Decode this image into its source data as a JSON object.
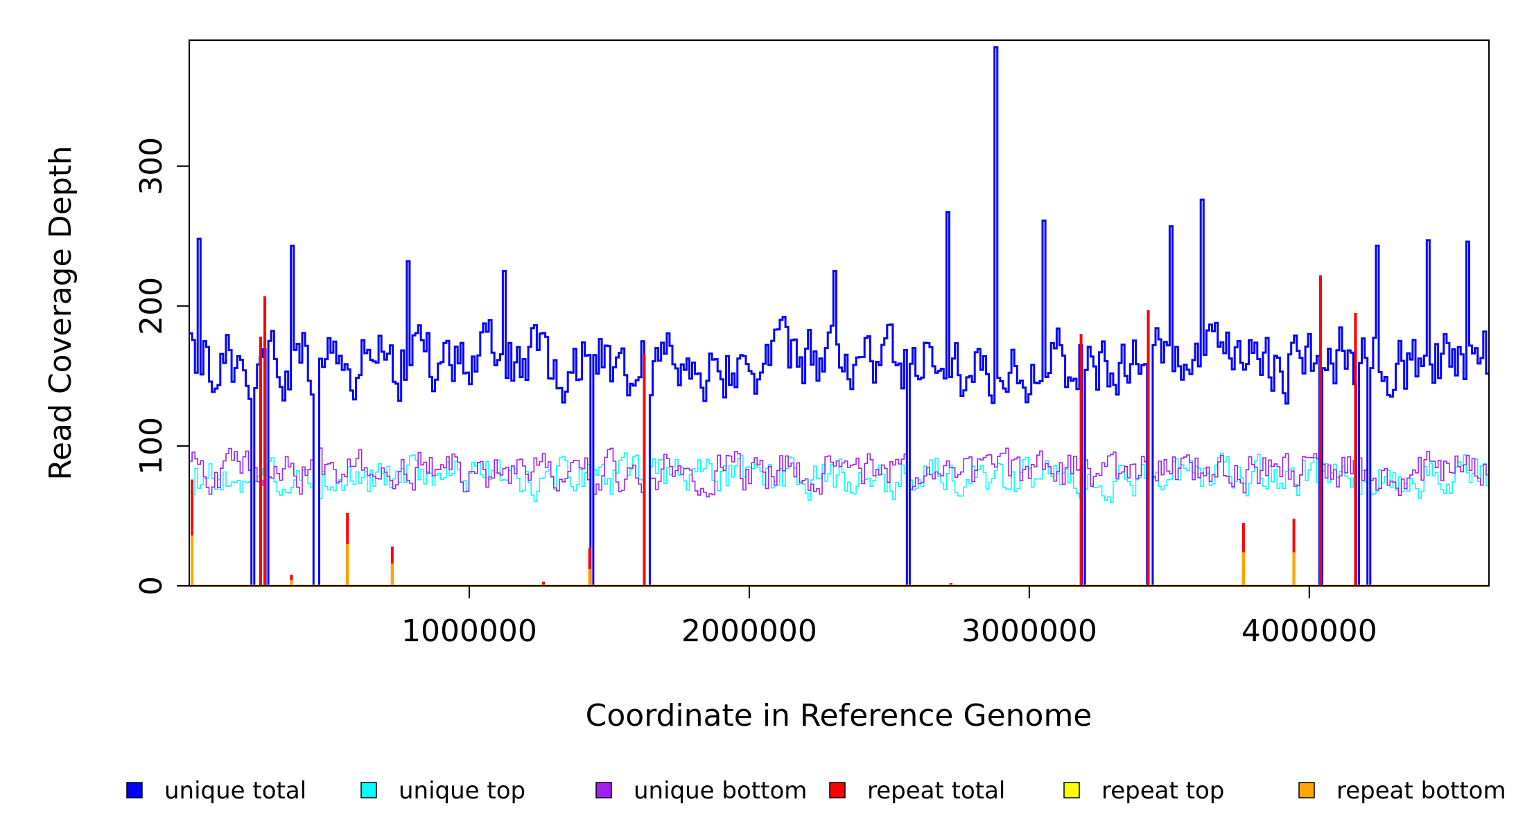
{
  "chart_data": {
    "type": "line",
    "xlabel": "Coordinate in Reference Genome",
    "ylabel": "Read Coverage Depth",
    "xlim": [
      0,
      4641652
    ],
    "ylim": [
      0,
      390
    ],
    "x_ticks": [
      1000000,
      2000000,
      3000000,
      4000000
    ],
    "x_tick_labels": [
      "1000000",
      "2000000",
      "3000000",
      "4000000"
    ],
    "y_ticks": [
      0,
      100,
      200,
      300
    ],
    "y_tick_labels": [
      "0",
      "100",
      "200",
      "300"
    ],
    "grid": false,
    "legend_position": "bottom",
    "colors": {
      "unique_total": "#0000ff",
      "unique_top": "#00ffff",
      "unique_bottom": "#a020f0",
      "repeat_total": "#ff0000",
      "repeat_top": "#ffff00",
      "repeat_bottom": "#ffa500"
    },
    "series": [
      {
        "key": "unique_total",
        "name": "unique total",
        "baseline": 160,
        "spread": 38
      },
      {
        "key": "unique_top",
        "name": "unique top",
        "baseline": 78,
        "spread": 22
      },
      {
        "key": "unique_bottom",
        "name": "unique bottom",
        "baseline": 82,
        "spread": 22
      },
      {
        "key": "repeat_total",
        "name": "repeat total"
      },
      {
        "key": "repeat_top",
        "name": "repeat top"
      },
      {
        "key": "repeat_bottom",
        "name": "repeat bottom"
      }
    ],
    "unique_total_peaks": [
      {
        "x": 30000,
        "y": 248
      },
      {
        "x": 360000,
        "y": 243
      },
      {
        "x": 780000,
        "y": 232
      },
      {
        "x": 1120000,
        "y": 225
      },
      {
        "x": 2300000,
        "y": 225
      },
      {
        "x": 2700000,
        "y": 267
      },
      {
        "x": 2875000,
        "y": 385
      },
      {
        "x": 3050000,
        "y": 261
      },
      {
        "x": 3500000,
        "y": 257
      },
      {
        "x": 3610000,
        "y": 276
      },
      {
        "x": 4240000,
        "y": 243
      },
      {
        "x": 4420000,
        "y": 247
      },
      {
        "x": 4560000,
        "y": 246
      }
    ],
    "coverage_gaps": [
      220000,
      270000,
      450000,
      1430000,
      1630000,
      2560000,
      3185000,
      3425000,
      4040000,
      4165000,
      4205000
    ],
    "repeat_spikes": [
      {
        "x": 10000,
        "total": 76,
        "bottom": 36
      },
      {
        "x": 255000,
        "total": 178,
        "bottom": 0
      },
      {
        "x": 270000,
        "total": 207,
        "bottom": 0
      },
      {
        "x": 365000,
        "total": 8,
        "bottom": 4
      },
      {
        "x": 565000,
        "total": 52,
        "bottom": 30
      },
      {
        "x": 725000,
        "total": 28,
        "bottom": 16
      },
      {
        "x": 1265000,
        "total": 3,
        "bottom": 1
      },
      {
        "x": 1430000,
        "total": 27,
        "bottom": 12
      },
      {
        "x": 1625000,
        "total": 166,
        "bottom": 0
      },
      {
        "x": 2720000,
        "total": 2,
        "bottom": 1
      },
      {
        "x": 3185000,
        "total": 180,
        "bottom": 0
      },
      {
        "x": 3425000,
        "total": 197,
        "bottom": 0
      },
      {
        "x": 3765000,
        "total": 45,
        "bottom": 24
      },
      {
        "x": 3945000,
        "total": 48,
        "bottom": 24
      },
      {
        "x": 4040000,
        "total": 222,
        "bottom": 0
      },
      {
        "x": 4165000,
        "total": 195,
        "bottom": 0
      }
    ]
  }
}
